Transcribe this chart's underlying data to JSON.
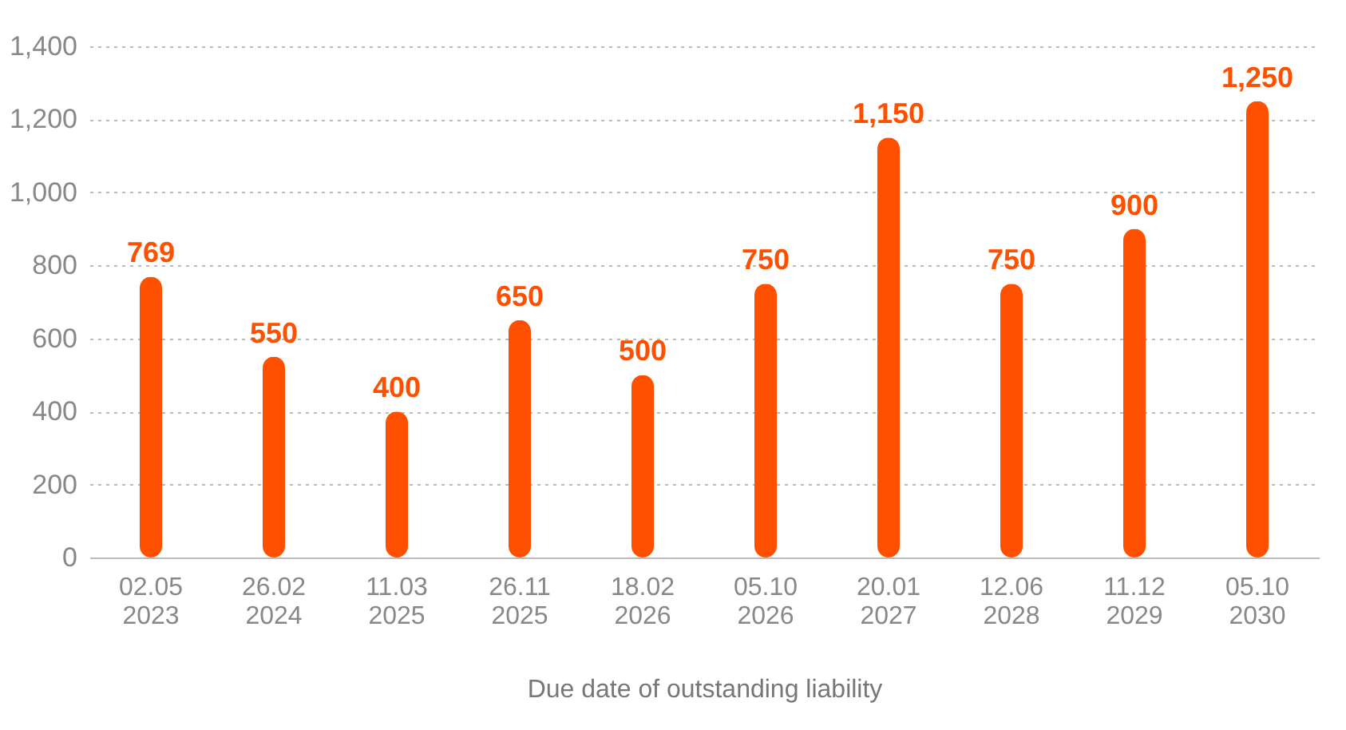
{
  "chart_data": {
    "type": "bar",
    "xlabel": "Due date of outstanding liability",
    "categories": [
      "02.05\n2023",
      "26.02\n2024",
      "11.03\n2025",
      "26.11\n2025",
      "18.02\n2026",
      "05.10\n2026",
      "20.01\n2027",
      "12.06\n2028",
      "11.12\n2029",
      "05.10\n2030"
    ],
    "values": [
      769,
      550,
      400,
      650,
      500,
      750,
      1150,
      750,
      900,
      1250
    ],
    "color": "#ff5000",
    "value_labels": [
      "769",
      "550",
      "400",
      "650",
      "500",
      "750",
      "1,150",
      "750",
      "900",
      "1,250"
    ],
    "ylim": [
      0,
      1400
    ],
    "yticks": [
      {
        "value": 0,
        "label": "0"
      },
      {
        "value": 200,
        "label": "200"
      },
      {
        "value": 400,
        "label": "400"
      },
      {
        "value": 600,
        "label": "600"
      },
      {
        "value": 800,
        "label": "800"
      },
      {
        "value": 1000,
        "label": "1,000"
      },
      {
        "value": 1200,
        "label": "1,200"
      },
      {
        "value": 1400,
        "label": "1,400"
      }
    ],
    "grid": "y"
  }
}
